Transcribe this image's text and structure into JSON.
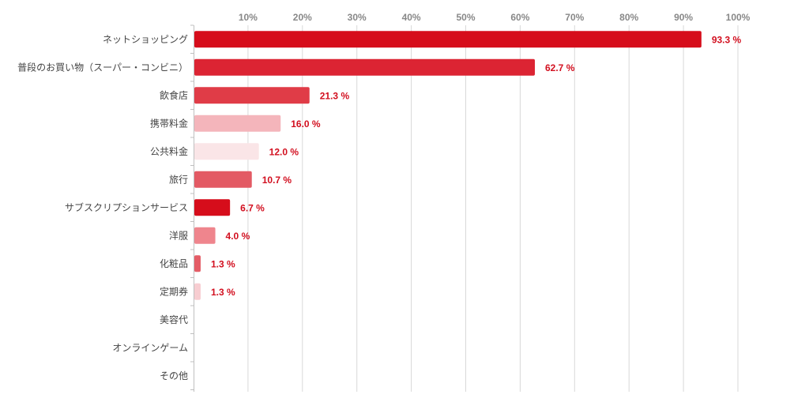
{
  "chart_data": {
    "type": "bar",
    "orientation": "horizontal",
    "title": "",
    "xlabel": "",
    "ylabel": "",
    "xlim": [
      0,
      100
    ],
    "x_ticks": [
      "10%",
      "20%",
      "30%",
      "40%",
      "50%",
      "60%",
      "70%",
      "80%",
      "90%",
      "100%"
    ],
    "x_tick_values": [
      10,
      20,
      30,
      40,
      50,
      60,
      70,
      80,
      90,
      100
    ],
    "grid": true,
    "categories": [
      "ネットショッピング",
      "普段のお買い物（スーパー・コンビニ）",
      "飲食店",
      "携帯料金",
      "公共料金",
      "旅行",
      "サブスクリプションサービス",
      "洋服",
      "化粧品",
      "定期券",
      "美容代",
      "オンラインゲーム",
      "その他"
    ],
    "values": [
      93.3,
      62.7,
      21.3,
      16.0,
      12.0,
      10.7,
      6.7,
      4.0,
      1.3,
      1.3,
      0,
      0,
      0
    ],
    "value_labels": [
      "93.3 %",
      "62.7 %",
      "21.3 %",
      "16.0 %",
      "12.0 %",
      "10.7 %",
      "6.7 %",
      "4.0 %",
      "1.3 %",
      "1.3 %",
      "",
      "",
      ""
    ],
    "bar_colors": [
      "#d60d1b",
      "#dc2433",
      "#e03c47",
      "#f4b5bb",
      "#fae5e7",
      "#e35a64",
      "#d60d1b",
      "#ef858d",
      "#e45c66",
      "#f7cdd1",
      "#ffffff",
      "#ffffff",
      "#ffffff"
    ],
    "value_label_color": "#d20f1f"
  }
}
